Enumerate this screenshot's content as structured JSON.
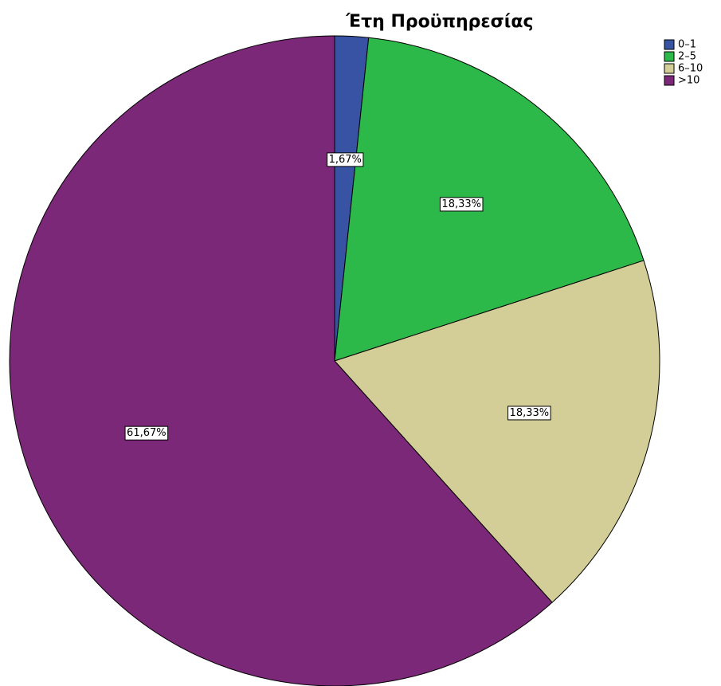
{
  "chart_data": {
    "type": "pie",
    "title": "Έτη Προϋπηρεσίας",
    "categories": [
      "0–1",
      "2–5",
      "6–10",
      ">10"
    ],
    "values": [
      1.67,
      18.33,
      18.33,
      61.67
    ],
    "value_labels": [
      "1,67%",
      "18,33%",
      "18,33%",
      "61,67%"
    ],
    "colors": [
      "#3953a4",
      "#2db84a",
      "#d3ce97",
      "#7a2877"
    ],
    "legend": "top-right"
  }
}
